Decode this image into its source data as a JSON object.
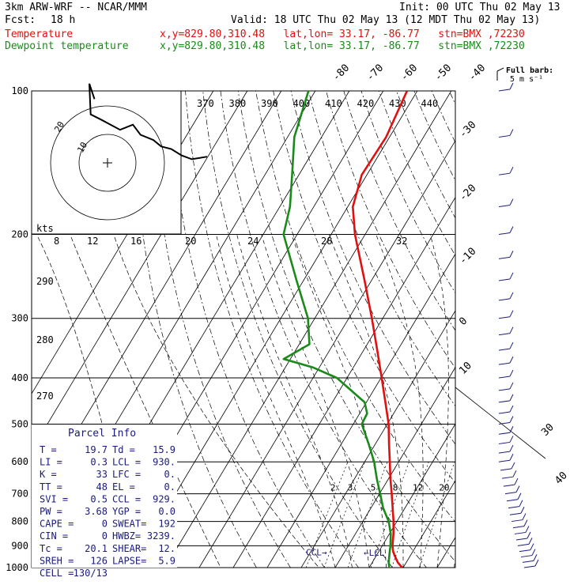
{
  "header": {
    "model": "3km ARW-WRF -- NCAR/MMM",
    "init": "Init: 00 UTC Thu 02 May 13",
    "fcst_label": "Fcst:",
    "fcst_value": "18 h",
    "valid": "Valid: 18 UTC Thu 02 May 13 (12 MDT Thu 02 May 13)",
    "temp_label": "Temperature",
    "temp_info": "x,y=829.80,310.48   lat,lon= 33.17, -86.77   stn=BMX ,72230",
    "dew_label": "Dewpoint temperature",
    "dew_info": "x,y=829.80,310.48   lat,lon= 33.17, -86.77   stn=BMX ,72230"
  },
  "barb_legend": {
    "line1": "Full barb:",
    "line2": "5 m s⁻¹"
  },
  "parcel": {
    "title": "Parcel Info",
    "rows": [
      [
        "T  =",
        "19.7",
        "Td =",
        "15.9"
      ],
      [
        "LI =",
        "0.3",
        "LCL =",
        "930."
      ],
      [
        "K  =",
        "33",
        "LFC =",
        "0."
      ],
      [
        "TT =",
        "48",
        "EL  =",
        "0."
      ],
      [
        "SVI =",
        "0.5",
        "CCL =",
        "929."
      ],
      [
        "PW =",
        "3.68",
        "YGP =",
        "0.0"
      ],
      [
        "CAPE =",
        "0",
        "SWEAT=",
        "192"
      ],
      [
        "CIN  =",
        "0",
        "HWBZ=",
        "3239."
      ],
      [
        "Tc =",
        "20.1",
        "SHEAR=",
        "12."
      ],
      [
        "SREH =",
        "126",
        "LAPSE=",
        "5.9"
      ],
      [
        "CELL =",
        "130/13",
        "",
        ""
      ]
    ]
  },
  "chart_data": {
    "type": "line",
    "subtype": "skew-T log-p",
    "ylabel": "",
    "xlabel": "",
    "pressure_ticks": [
      100,
      200,
      300,
      400,
      500,
      600,
      700,
      800,
      900,
      1000
    ],
    "isotherm_labels": [
      "-80",
      "-70",
      "-60",
      "-50",
      "-40",
      "-30",
      "-20",
      "-10",
      "0",
      "10",
      "20",
      "30",
      "40"
    ],
    "theta_labels": [
      "370",
      "380",
      "390",
      "400",
      "410",
      "420",
      "430",
      "440"
    ],
    "theta_side_labels": [
      "290",
      "280",
      "270"
    ],
    "mixing_ratio_labels": [
      "2",
      "3",
      "5",
      "8",
      "12",
      "20"
    ],
    "hodograph": {
      "unit_label": "kts",
      "ring_labels": [
        "8",
        "12",
        "16",
        "20",
        "24",
        "28",
        "32"
      ],
      "small_labels": [
        "20",
        "10"
      ]
    },
    "markers": {
      "ccl": "CCL",
      "lcl": "LCL"
    },
    "series": [
      {
        "name": "Temperature",
        "color": "#e01010",
        "points": [
          [
            1000,
            19.7
          ],
          [
            975,
            17.5
          ],
          [
            950,
            15.8
          ],
          [
            925,
            14.2
          ],
          [
            900,
            13.0
          ],
          [
            850,
            11.2
          ],
          [
            800,
            9.0
          ],
          [
            750,
            6.4
          ],
          [
            700,
            3.6
          ],
          [
            650,
            0.5
          ],
          [
            600,
            -2.6
          ],
          [
            550,
            -6.0
          ],
          [
            500,
            -9.6
          ],
          [
            450,
            -14.4
          ],
          [
            400,
            -19.8
          ],
          [
            350,
            -26.0
          ],
          [
            300,
            -33.2
          ],
          [
            250,
            -42.0
          ],
          [
            200,
            -53.0
          ],
          [
            175,
            -58.5
          ],
          [
            150,
            -61.5
          ],
          [
            125,
            -61.0
          ],
          [
            100,
            -63.0
          ]
        ]
      },
      {
        "name": "Dewpoint temperature",
        "color": "#1a8a1a",
        "points": [
          [
            1000,
            15.9
          ],
          [
            975,
            14.8
          ],
          [
            950,
            14.0
          ],
          [
            925,
            13.2
          ],
          [
            900,
            12.4
          ],
          [
            850,
            10.4
          ],
          [
            800,
            7.6
          ],
          [
            750,
            3.6
          ],
          [
            700,
            0.2
          ],
          [
            650,
            -3.5
          ],
          [
            600,
            -7.2
          ],
          [
            550,
            -12.0
          ],
          [
            500,
            -17.5
          ],
          [
            475,
            -17.8
          ],
          [
            450,
            -20.5
          ],
          [
            400,
            -33.0
          ],
          [
            380,
            -42.0
          ],
          [
            365,
            -52.0
          ],
          [
            340,
            -47.0
          ],
          [
            300,
            -52.0
          ],
          [
            250,
            -62.0
          ],
          [
            200,
            -74.0
          ],
          [
            175,
            -77.0
          ],
          [
            150,
            -82.0
          ],
          [
            125,
            -88.0
          ],
          [
            100,
            -92.0
          ]
        ]
      }
    ],
    "hodograph_trace": [
      [
        -2.0,
        -28.0
      ],
      [
        -4.0,
        -34.0
      ],
      [
        -3.5,
        -22.0
      ],
      [
        0.5,
        -20.0
      ],
      [
        8.0,
        -16.0
      ],
      [
        13.0,
        -18.0
      ],
      [
        16.0,
        -14.0
      ],
      [
        21.0,
        -12.0
      ],
      [
        24.0,
        -9.5
      ],
      [
        28.0,
        -8.5
      ],
      [
        32.0,
        -6.0
      ],
      [
        36.0,
        -4.5
      ],
      [
        42.0,
        -5.5
      ]
    ]
  }
}
